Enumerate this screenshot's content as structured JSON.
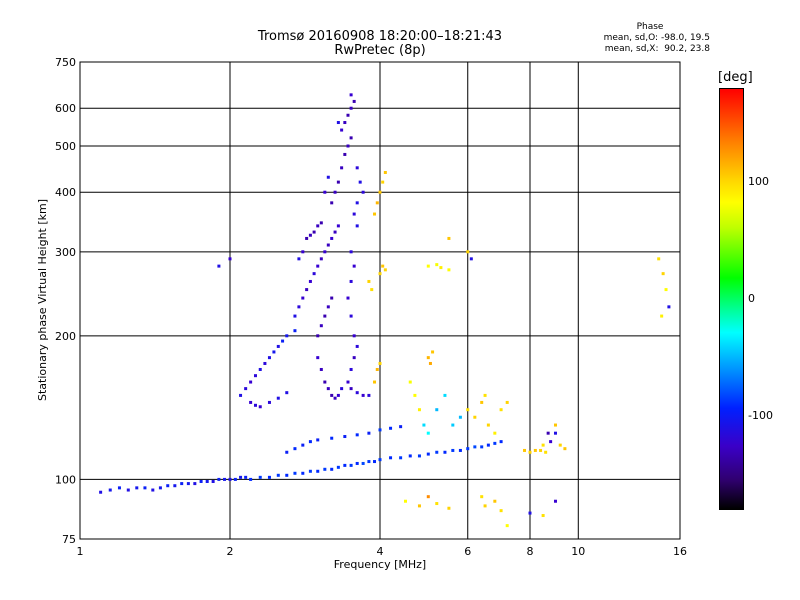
{
  "phase": {
    "header": "Phase",
    "line_o": "mean, sd,O: -98.0, 19.5",
    "line_x": "mean, sd,X:  90.2, 23.8"
  },
  "colorbar": {
    "unit": "[deg]",
    "ticks": [
      {
        "value": 100,
        "label": "100"
      },
      {
        "value": 0,
        "label": "0"
      },
      {
        "value": -100,
        "label": "-100"
      }
    ],
    "range": [
      -180,
      180
    ]
  },
  "chart_data": {
    "type": "scatter",
    "title": "Tromsø 20160908 18:20:00–18:21:43",
    "subtitle": "RwPretec (8p)",
    "xlabel": "Frequency [MHz]",
    "ylabel": "Stationary phase Virtual Height [km]",
    "x_scale": "log",
    "y_scale": "log",
    "xlim": [
      1,
      16
    ],
    "ylim": [
      75,
      750
    ],
    "x_ticks": [
      {
        "value": 1,
        "label": "1"
      },
      {
        "value": 2,
        "label": "2"
      },
      {
        "value": 4,
        "label": "4"
      },
      {
        "value": 6,
        "label": "6"
      },
      {
        "value": 8,
        "label": "8"
      },
      {
        "value": 10,
        "label": "10"
      },
      {
        "value": 16,
        "label": "16"
      }
    ],
    "y_ticks": [
      {
        "value": 75,
        "label": "75"
      },
      {
        "value": 100,
        "label": "100"
      },
      {
        "value": 200,
        "label": "200"
      },
      {
        "value": 300,
        "label": "300"
      },
      {
        "value": 400,
        "label": "400"
      },
      {
        "value": 500,
        "label": "500"
      },
      {
        "value": 600,
        "label": "600"
      },
      {
        "value": 750,
        "label": "750"
      }
    ],
    "grid": true,
    "points": [
      [
        1.1,
        94,
        -110
      ],
      [
        1.15,
        95,
        -105
      ],
      [
        1.2,
        96,
        -100
      ],
      [
        1.25,
        95,
        -110
      ],
      [
        1.3,
        96,
        -105
      ],
      [
        1.35,
        96,
        -100
      ],
      [
        1.4,
        95,
        -110
      ],
      [
        1.45,
        96,
        -105
      ],
      [
        1.5,
        97,
        -100
      ],
      [
        1.55,
        97,
        -105
      ],
      [
        1.6,
        98,
        -100
      ],
      [
        1.65,
        98,
        -105
      ],
      [
        1.7,
        98,
        -110
      ],
      [
        1.75,
        99,
        -100
      ],
      [
        1.8,
        99,
        -105
      ],
      [
        1.85,
        99,
        -110
      ],
      [
        1.9,
        100,
        -100
      ],
      [
        1.95,
        100,
        -105
      ],
      [
        2.0,
        100,
        -110
      ],
      [
        2.05,
        100,
        -100
      ],
      [
        2.1,
        101,
        -105
      ],
      [
        2.15,
        101,
        -100
      ],
      [
        2.2,
        100,
        -95
      ],
      [
        2.3,
        101,
        -90
      ],
      [
        2.4,
        101,
        -95
      ],
      [
        2.5,
        102,
        -90
      ],
      [
        2.6,
        102,
        -95
      ],
      [
        2.7,
        103,
        -90
      ],
      [
        2.8,
        103,
        -95
      ],
      [
        2.9,
        104,
        -90
      ],
      [
        3.0,
        104,
        -95
      ],
      [
        3.1,
        105,
        -90
      ],
      [
        3.2,
        105,
        -95
      ],
      [
        3.3,
        106,
        -90
      ],
      [
        3.4,
        107,
        -95
      ],
      [
        3.5,
        107,
        -90
      ],
      [
        3.6,
        108,
        -95
      ],
      [
        3.7,
        108,
        -85
      ],
      [
        3.8,
        109,
        -90
      ],
      [
        3.9,
        109,
        -95
      ],
      [
        4.0,
        110,
        -90
      ],
      [
        4.2,
        111,
        -95
      ],
      [
        4.4,
        111,
        -90
      ],
      [
        4.6,
        112,
        -95
      ],
      [
        4.8,
        112,
        -90
      ],
      [
        5.0,
        113,
        -95
      ],
      [
        5.2,
        114,
        -90
      ],
      [
        5.4,
        114,
        -95
      ],
      [
        5.6,
        115,
        -90
      ],
      [
        5.8,
        115,
        -95
      ],
      [
        6.0,
        116,
        -90
      ],
      [
        6.2,
        117,
        -85
      ],
      [
        6.4,
        117,
        -90
      ],
      [
        6.6,
        118,
        -95
      ],
      [
        6.8,
        119,
        -90
      ],
      [
        7.0,
        120,
        -95
      ],
      [
        2.6,
        114,
        -100
      ],
      [
        2.7,
        116,
        -95
      ],
      [
        2.8,
        118,
        -100
      ],
      [
        2.9,
        120,
        -95
      ],
      [
        3.0,
        121,
        -100
      ],
      [
        3.2,
        122,
        -95
      ],
      [
        3.4,
        123,
        -100
      ],
      [
        3.6,
        124,
        -95
      ],
      [
        3.8,
        125,
        -100
      ],
      [
        4.0,
        127,
        -90
      ],
      [
        4.2,
        128,
        -95
      ],
      [
        4.4,
        129,
        -100
      ],
      [
        2.1,
        150,
        -110
      ],
      [
        2.15,
        155,
        -115
      ],
      [
        2.2,
        160,
        -120
      ],
      [
        2.25,
        165,
        -115
      ],
      [
        2.3,
        170,
        -110
      ],
      [
        2.35,
        175,
        -115
      ],
      [
        2.4,
        180,
        -110
      ],
      [
        2.45,
        185,
        -105
      ],
      [
        2.5,
        190,
        -110
      ],
      [
        2.55,
        195,
        -100
      ],
      [
        2.6,
        200,
        -105
      ],
      [
        2.7,
        205,
        -100
      ],
      [
        2.2,
        145,
        -120
      ],
      [
        2.25,
        143,
        -115
      ],
      [
        2.3,
        142,
        -120
      ],
      [
        2.4,
        145,
        -115
      ],
      [
        2.5,
        148,
        -110
      ],
      [
        2.6,
        152,
        -110
      ],
      [
        2.7,
        220,
        -110
      ],
      [
        2.75,
        230,
        -115
      ],
      [
        2.8,
        240,
        -120
      ],
      [
        2.85,
        250,
        -125
      ],
      [
        2.9,
        260,
        -120
      ],
      [
        2.95,
        270,
        -115
      ],
      [
        3.0,
        280,
        -120
      ],
      [
        3.05,
        290,
        -125
      ],
      [
        3.1,
        300,
        -120
      ],
      [
        3.15,
        310,
        -125
      ],
      [
        3.2,
        320,
        -120
      ],
      [
        3.25,
        330,
        -125
      ],
      [
        3.3,
        340,
        -120
      ],
      [
        2.85,
        320,
        -130
      ],
      [
        2.9,
        325,
        -125
      ],
      [
        2.95,
        330,
        -130
      ],
      [
        3.0,
        340,
        -125
      ],
      [
        3.05,
        345,
        -130
      ],
      [
        2.8,
        300,
        -120
      ],
      [
        2.75,
        290,
        -110
      ],
      [
        3.0,
        200,
        -130
      ],
      [
        3.05,
        210,
        -125
      ],
      [
        3.1,
        220,
        -130
      ],
      [
        3.15,
        230,
        -125
      ],
      [
        3.2,
        240,
        -130
      ],
      [
        3.0,
        180,
        -120
      ],
      [
        3.05,
        170,
        -125
      ],
      [
        3.1,
        160,
        -130
      ],
      [
        3.15,
        155,
        -125
      ],
      [
        3.2,
        150,
        -130
      ],
      [
        3.25,
        148,
        -125
      ],
      [
        3.3,
        150,
        -120
      ],
      [
        3.35,
        155,
        -115
      ],
      [
        3.2,
        380,
        -130
      ],
      [
        3.25,
        400,
        -125
      ],
      [
        3.3,
        420,
        -130
      ],
      [
        3.35,
        450,
        -125
      ],
      [
        3.4,
        480,
        -130
      ],
      [
        3.45,
        500,
        -125
      ],
      [
        3.5,
        520,
        -130
      ],
      [
        3.4,
        560,
        -125
      ],
      [
        3.45,
        580,
        -130
      ],
      [
        3.5,
        600,
        -125
      ],
      [
        3.55,
        620,
        -130
      ],
      [
        3.5,
        640,
        -120
      ],
      [
        3.3,
        560,
        -110
      ],
      [
        3.35,
        540,
        -120
      ],
      [
        3.6,
        450,
        -115
      ],
      [
        3.65,
        420,
        -110
      ],
      [
        3.7,
        400,
        -115
      ],
      [
        3.6,
        380,
        -110
      ],
      [
        3.55,
        360,
        -115
      ],
      [
        3.6,
        340,
        -110
      ],
      [
        3.1,
        400,
        -120
      ],
      [
        3.15,
        430,
        -110
      ],
      [
        3.5,
        300,
        -115
      ],
      [
        3.55,
        280,
        -120
      ],
      [
        3.5,
        260,
        -115
      ],
      [
        3.45,
        240,
        -120
      ],
      [
        3.5,
        220,
        -115
      ],
      [
        3.55,
        200,
        -120
      ],
      [
        3.6,
        190,
        -115
      ],
      [
        3.55,
        180,
        -125
      ],
      [
        3.5,
        170,
        -115
      ],
      [
        3.45,
        160,
        -120
      ],
      [
        3.5,
        155,
        -125
      ],
      [
        3.6,
        152,
        -115
      ],
      [
        3.7,
        150,
        -120
      ],
      [
        3.8,
        150,
        -115
      ],
      [
        3.9,
        160,
        120
      ],
      [
        3.95,
        170,
        125
      ],
      [
        4.0,
        175,
        115
      ],
      [
        3.9,
        360,
        120
      ],
      [
        3.95,
        380,
        125
      ],
      [
        4.0,
        400,
        120
      ],
      [
        4.05,
        420,
        115
      ],
      [
        4.1,
        440,
        120
      ],
      [
        4.0,
        270,
        115
      ],
      [
        4.05,
        280,
        120
      ],
      [
        4.1,
        275,
        115
      ],
      [
        3.85,
        250,
        110
      ],
      [
        3.8,
        260,
        115
      ],
      [
        5.0,
        280,
        100
      ],
      [
        5.2,
        282,
        95
      ],
      [
        5.3,
        278,
        105
      ],
      [
        5.5,
        275,
        100
      ],
      [
        5.0,
        180,
        125
      ],
      [
        5.05,
        175,
        130
      ],
      [
        5.1,
        185,
        120
      ],
      [
        4.6,
        160,
        95
      ],
      [
        4.7,
        150,
        100
      ],
      [
        4.8,
        140,
        105
      ],
      [
        4.9,
        130,
        -40
      ],
      [
        5.0,
        125,
        -30
      ],
      [
        5.2,
        140,
        -50
      ],
      [
        5.4,
        150,
        -40
      ],
      [
        5.6,
        130,
        -45
      ],
      [
        5.8,
        135,
        -50
      ],
      [
        6.0,
        140,
        110
      ],
      [
        6.2,
        135,
        115
      ],
      [
        6.4,
        145,
        120
      ],
      [
        6.5,
        150,
        110
      ],
      [
        6.6,
        130,
        115
      ],
      [
        6.8,
        125,
        105
      ],
      [
        7.0,
        140,
        110
      ],
      [
        7.2,
        145,
        115
      ],
      [
        7.8,
        115,
        120
      ],
      [
        8.0,
        114,
        115
      ],
      [
        8.2,
        115,
        120
      ],
      [
        8.4,
        115,
        115
      ],
      [
        8.6,
        114,
        110
      ],
      [
        8.8,
        120,
        -120
      ],
      [
        9.0,
        125,
        -110
      ],
      [
        9.2,
        118,
        115
      ],
      [
        9.4,
        116,
        120
      ],
      [
        9.0,
        130,
        120
      ],
      [
        8.7,
        125,
        -130
      ],
      [
        8.5,
        118,
        110
      ],
      [
        4.5,
        90,
        100
      ],
      [
        4.8,
        88,
        120
      ],
      [
        5.0,
        92,
        140
      ],
      [
        5.2,
        89,
        110
      ],
      [
        5.5,
        87,
        115
      ],
      [
        6.4,
        92,
        110
      ],
      [
        6.5,
        88,
        115
      ],
      [
        6.8,
        90,
        120
      ],
      [
        7.0,
        86,
        110
      ],
      [
        7.2,
        80,
        100
      ],
      [
        8.0,
        85,
        -110
      ],
      [
        8.5,
        84,
        110
      ],
      [
        9.0,
        90,
        -120
      ],
      [
        14.5,
        290,
        110
      ],
      [
        14.8,
        270,
        115
      ],
      [
        15.0,
        250,
        100
      ],
      [
        14.7,
        220,
        105
      ],
      [
        15.2,
        230,
        -110
      ],
      [
        5.5,
        320,
        120
      ],
      [
        6.0,
        300,
        115
      ],
      [
        6.1,
        290,
        -110
      ],
      [
        2.0,
        290,
        -120
      ],
      [
        1.9,
        280,
        -110
      ]
    ]
  }
}
